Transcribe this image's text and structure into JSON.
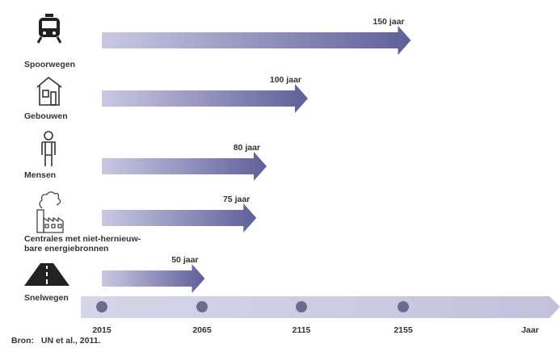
{
  "chart_data": {
    "type": "bar",
    "rows": [
      {
        "name": "Spoorwegen",
        "label_lines": [
          "Spoorwegen"
        ],
        "icon": "train-icon",
        "start": 2015,
        "years": 150,
        "value_label": "150 jaar"
      },
      {
        "name": "Gebouwen",
        "label_lines": [
          "Gebouwen"
        ],
        "icon": "house-icon",
        "start": 2015,
        "years": 100,
        "value_label": "100 jaar"
      },
      {
        "name": "Mensen",
        "label_lines": [
          "Mensen"
        ],
        "icon": "person-icon",
        "start": 2015,
        "years": 80,
        "value_label": "80 jaar"
      },
      {
        "name": "Centrales",
        "label_lines": [
          "Centrales met niet-hernieuw-",
          "bare energiebronnen"
        ],
        "icon": "power-plant-icon",
        "start": 2015,
        "years": 75,
        "value_label": "75 jaar"
      },
      {
        "name": "Snelwegen",
        "label_lines": [
          "Snelwegen"
        ],
        "icon": "road-icon",
        "start": 2015,
        "years": 50,
        "value_label": "50 jaar"
      }
    ],
    "axis": {
      "ticks": [
        2015,
        2065,
        2115,
        2155
      ],
      "tick_labels": [
        "2015",
        "2065",
        "2115",
        "2155"
      ],
      "end_label": "Jaar"
    },
    "colors": {
      "arrow_start": "#c9c9e3",
      "arrow_end": "#5f5f99",
      "axis_bar": "#c9c9e3",
      "dot": "#6c6c8e",
      "icon": "#222222"
    }
  },
  "source": {
    "label": "Bron:",
    "text": "UN et al., 2011."
  }
}
